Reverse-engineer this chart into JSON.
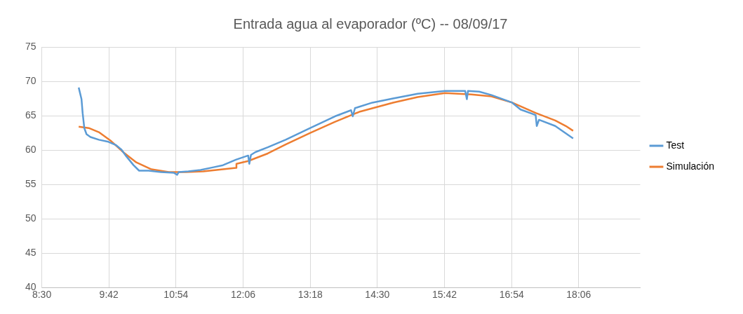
{
  "chart_data": {
    "type": "line",
    "title": "Entrada agua al evaporador (ºC) -- 08/09/17",
    "xlim": [
      8.5,
      19.2
    ],
    "xticks": [
      {
        "value": 8.5,
        "label": "8:30"
      },
      {
        "value": 9.7,
        "label": "9:42"
      },
      {
        "value": 10.9,
        "label": "10:54"
      },
      {
        "value": 12.1,
        "label": "12:06"
      },
      {
        "value": 13.3,
        "label": "13:18"
      },
      {
        "value": 14.5,
        "label": "14:30"
      },
      {
        "value": 15.7,
        "label": "15:42"
      },
      {
        "value": 16.9,
        "label": "16:54"
      },
      {
        "value": 18.1,
        "label": "18:06"
      }
    ],
    "ylim": [
      40,
      75
    ],
    "yticks": [
      40,
      45,
      50,
      55,
      60,
      65,
      70,
      75
    ],
    "grid": true,
    "legend": "right",
    "marker": "none",
    "line_style": "solid",
    "series": [
      {
        "name": "Test",
        "color": "#5b9bd5",
        "x": [
          9.16,
          9.21,
          9.23,
          9.26,
          9.3,
          9.37,
          9.52,
          9.69,
          9.83,
          9.92,
          10.01,
          10.14,
          10.24,
          10.41,
          10.63,
          10.86,
          10.92,
          10.95,
          11.12,
          11.34,
          11.57,
          11.74,
          11.97,
          12.19,
          12.21,
          12.24,
          12.32,
          12.54,
          12.86,
          13.3,
          13.74,
          14.03,
          14.06,
          14.1,
          14.41,
          14.78,
          15.22,
          15.71,
          16.07,
          16.1,
          16.12,
          16.32,
          16.54,
          16.91,
          17.06,
          17.33,
          17.35,
          17.39,
          17.68,
          18.0
        ],
        "values": [
          69.1,
          67.4,
          65.4,
          63.2,
          62.3,
          61.9,
          61.5,
          61.2,
          60.7,
          60.1,
          59.1,
          57.8,
          57.0,
          57.0,
          56.8,
          56.7,
          56.4,
          56.8,
          56.9,
          57.1,
          57.5,
          57.8,
          58.6,
          59.2,
          58.0,
          59.3,
          59.7,
          60.4,
          61.5,
          63.2,
          64.9,
          65.8,
          64.9,
          66.1,
          66.9,
          67.5,
          68.2,
          68.6,
          68.6,
          67.4,
          68.6,
          68.5,
          68.0,
          66.9,
          65.9,
          65.1,
          63.5,
          64.4,
          63.5,
          61.7
        ]
      },
      {
        "name": "Simulación",
        "color": "#ed7d31",
        "x": [
          9.16,
          9.34,
          9.52,
          9.74,
          9.97,
          10.19,
          10.46,
          10.77,
          11.08,
          11.39,
          11.74,
          11.97,
          11.98,
          12.19,
          12.54,
          12.86,
          13.3,
          13.74,
          14.19,
          14.78,
          15.22,
          15.71,
          16.18,
          16.54,
          16.91,
          17.33,
          17.68,
          17.87,
          18.0
        ],
        "values": [
          63.4,
          63.2,
          62.6,
          61.3,
          59.6,
          58.2,
          57.2,
          56.8,
          56.8,
          56.9,
          57.2,
          57.4,
          58.0,
          58.4,
          59.5,
          60.8,
          62.5,
          64.1,
          65.6,
          66.9,
          67.7,
          68.3,
          68.1,
          67.8,
          66.9,
          65.4,
          64.3,
          63.5,
          62.8
        ]
      }
    ]
  }
}
